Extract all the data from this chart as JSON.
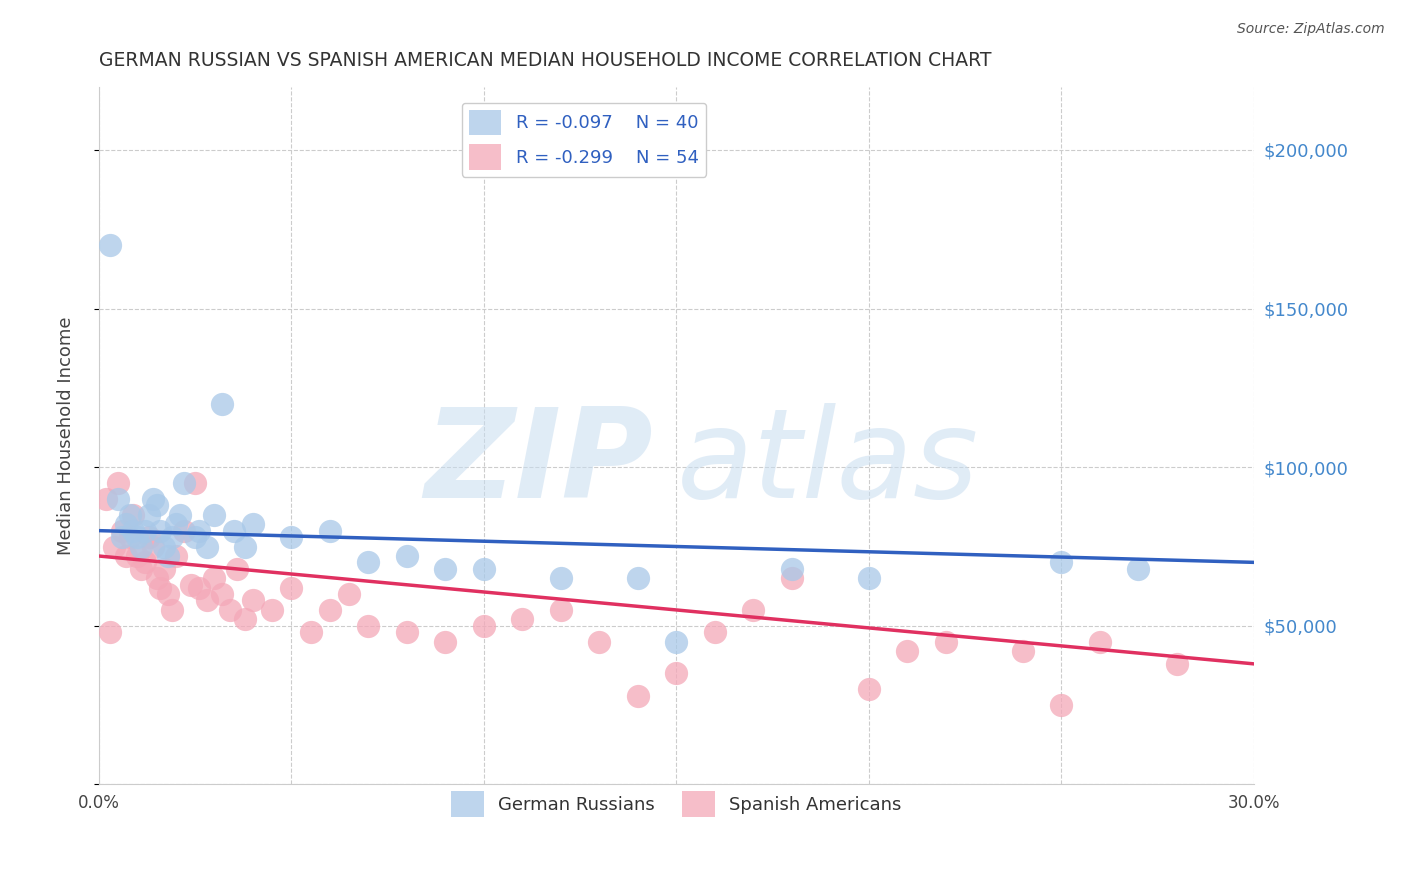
{
  "title": "GERMAN RUSSIAN VS SPANISH AMERICAN MEDIAN HOUSEHOLD INCOME CORRELATION CHART",
  "source": "Source: ZipAtlas.com",
  "ylabel": "Median Household Income",
  "xlim": [
    0.0,
    0.3
  ],
  "ylim": [
    0,
    220000
  ],
  "yticks": [
    0,
    50000,
    100000,
    150000,
    200000
  ],
  "ytick_labels": [
    "",
    "$50,000",
    "$100,000",
    "$150,000",
    "$200,000"
  ],
  "xticks": [
    0.0,
    0.05,
    0.1,
    0.15,
    0.2,
    0.25,
    0.3
  ],
  "xtick_labels": [
    "0.0%",
    "",
    "",
    "",
    "",
    "",
    "30.0%"
  ],
  "blue_color": "#a8c8e8",
  "pink_color": "#f4a8b8",
  "blue_line_color": "#3060c0",
  "pink_line_color": "#e03060",
  "legend_R1": "R = -0.097",
  "legend_N1": "N = 40",
  "legend_R2": "R = -0.299",
  "legend_N2": "N = 54",
  "watermark_zip": "ZIP",
  "watermark_atlas": "atlas",
  "background_color": "#ffffff",
  "grid_color": "#cccccc",
  "german_russian_x": [
    0.003,
    0.005,
    0.006,
    0.007,
    0.008,
    0.009,
    0.01,
    0.011,
    0.012,
    0.013,
    0.014,
    0.015,
    0.016,
    0.017,
    0.018,
    0.019,
    0.02,
    0.021,
    0.022,
    0.025,
    0.026,
    0.028,
    0.03,
    0.032,
    0.035,
    0.038,
    0.04,
    0.05,
    0.06,
    0.07,
    0.08,
    0.09,
    0.1,
    0.12,
    0.14,
    0.15,
    0.18,
    0.2,
    0.25,
    0.27
  ],
  "german_russian_y": [
    170000,
    90000,
    78000,
    82000,
    85000,
    80000,
    78000,
    75000,
    80000,
    85000,
    90000,
    88000,
    80000,
    75000,
    72000,
    78000,
    82000,
    85000,
    95000,
    78000,
    80000,
    75000,
    85000,
    120000,
    80000,
    75000,
    82000,
    78000,
    80000,
    70000,
    72000,
    68000,
    68000,
    65000,
    65000,
    45000,
    68000,
    65000,
    70000,
    68000
  ],
  "spanish_american_x": [
    0.002,
    0.003,
    0.004,
    0.005,
    0.006,
    0.007,
    0.008,
    0.009,
    0.01,
    0.011,
    0.012,
    0.013,
    0.014,
    0.015,
    0.016,
    0.017,
    0.018,
    0.019,
    0.02,
    0.022,
    0.024,
    0.025,
    0.026,
    0.028,
    0.03,
    0.032,
    0.034,
    0.036,
    0.038,
    0.04,
    0.045,
    0.05,
    0.055,
    0.06,
    0.065,
    0.07,
    0.08,
    0.09,
    0.1,
    0.11,
    0.12,
    0.13,
    0.14,
    0.15,
    0.16,
    0.17,
    0.18,
    0.2,
    0.21,
    0.22,
    0.24,
    0.25,
    0.26,
    0.28
  ],
  "spanish_american_y": [
    90000,
    48000,
    75000,
    95000,
    80000,
    72000,
    78000,
    85000,
    72000,
    68000,
    70000,
    78000,
    75000,
    65000,
    62000,
    68000,
    60000,
    55000,
    72000,
    80000,
    63000,
    95000,
    62000,
    58000,
    65000,
    60000,
    55000,
    68000,
    52000,
    58000,
    55000,
    62000,
    48000,
    55000,
    60000,
    50000,
    48000,
    45000,
    50000,
    52000,
    55000,
    45000,
    28000,
    35000,
    48000,
    55000,
    65000,
    30000,
    42000,
    45000,
    42000,
    25000,
    45000,
    38000
  ]
}
